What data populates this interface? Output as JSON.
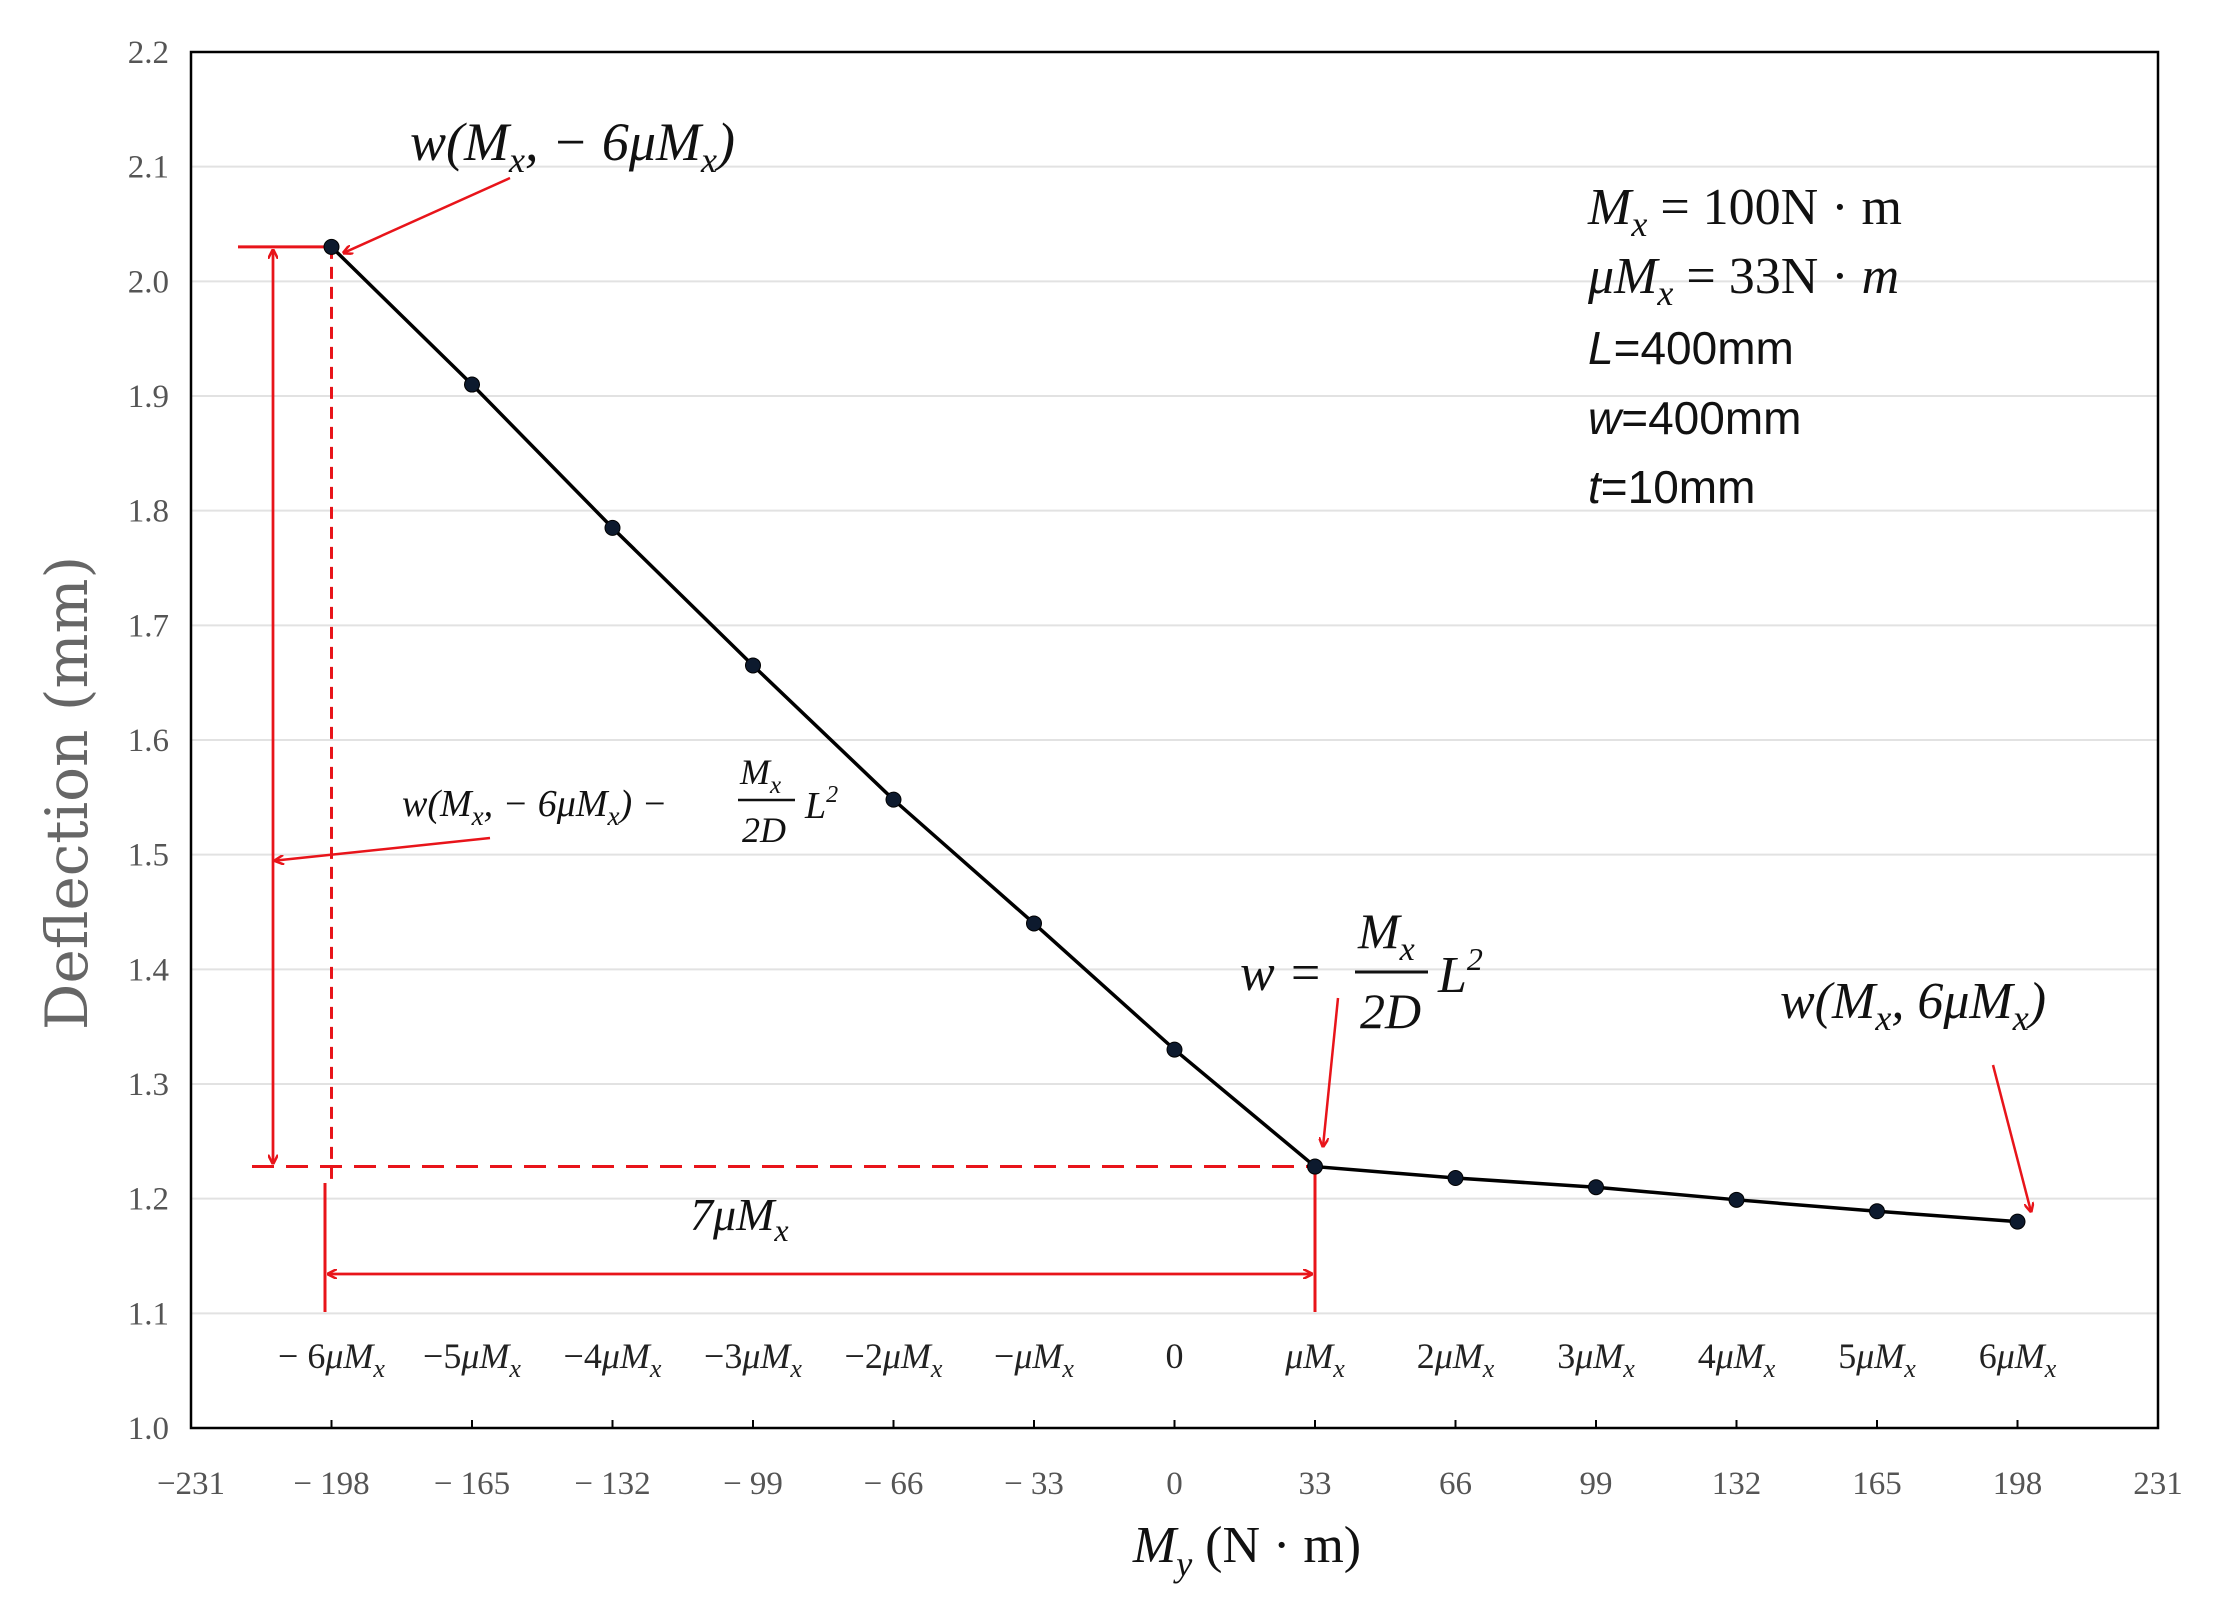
{
  "chart_data": {
    "type": "line",
    "x": [
      -198,
      -165,
      -132,
      -99,
      -66,
      -33,
      0,
      33,
      66,
      99,
      132,
      165,
      198
    ],
    "series": [
      {
        "name": "Deflection",
        "values": [
          2.03,
          1.91,
          1.785,
          1.665,
          1.548,
          1.44,
          1.33,
          1.228,
          1.218,
          1.21,
          1.199,
          1.189,
          1.18
        ]
      }
    ],
    "xlim": [
      -231,
      231
    ],
    "ylim": [
      1.0,
      2.2
    ],
    "x_ticks": [
      -231,
      -198,
      -165,
      -132,
      -99,
      -66,
      -33,
      0,
      33,
      66,
      99,
      132,
      165,
      198,
      231
    ],
    "x_tick_labels": [
      "−231",
      "− 198",
      "− 165",
      "− 132",
      "− 99",
      "− 66",
      "− 33",
      "0",
      "33",
      "66",
      "99",
      "132",
      "165",
      "198",
      "231"
    ],
    "y_ticks": [
      1.0,
      1.1,
      1.2,
      1.3,
      1.4,
      1.5,
      1.6,
      1.7,
      1.8,
      1.9,
      2.0,
      2.1,
      2.2
    ],
    "y_tick_labels": [
      "1.0",
      "1.1",
      "1.2",
      "1.3",
      "1.4",
      "1.5",
      "1.6",
      "1.7",
      "1.8",
      "1.9",
      "2.0",
      "2.1",
      "2.2"
    ],
    "ylabel": "Deflection (mm)",
    "xlabel": {
      "main": "M",
      "sub": "y",
      "unit": " (N · m)"
    },
    "grid": "horizontal",
    "moment_labels": [
      {
        "x": -198,
        "coef": "− 6",
        "mu": "μM",
        "sub": "x"
      },
      {
        "x": -165,
        "coef": "−5",
        "mu": "μM",
        "sub": "x"
      },
      {
        "x": -132,
        "coef": "−4",
        "mu": "μM",
        "sub": "x"
      },
      {
        "x": -99,
        "coef": "−3",
        "mu": "μM",
        "sub": "x"
      },
      {
        "x": -66,
        "coef": "−2",
        "mu": "μM",
        "sub": "x"
      },
      {
        "x": -33,
        "coef": "−",
        "mu": "μM",
        "sub": "x"
      },
      {
        "x": 0,
        "coef": "0",
        "mu": "",
        "sub": ""
      },
      {
        "x": 33,
        "coef": "",
        "mu": "μM",
        "sub": "x"
      },
      {
        "x": 66,
        "coef": "2",
        "mu": "μM",
        "sub": "x"
      },
      {
        "x": 99,
        "coef": "3",
        "mu": "μM",
        "sub": "x"
      },
      {
        "x": 132,
        "coef": "4",
        "mu": "μM",
        "sub": "x"
      },
      {
        "x": 165,
        "coef": "5",
        "mu": "μM",
        "sub": "x"
      },
      {
        "x": 198,
        "coef": "6",
        "mu": "μM",
        "sub": "x"
      }
    ],
    "annotations": {
      "max_point": {
        "w": "w(",
        "M": "M",
        "sub": "x",
        "rest": ", − 6μM",
        "sub2": "x",
        "close": ")"
      },
      "min_point": {
        "w": "w(",
        "M": "M",
        "sub": "x",
        "rest": ", 6μM",
        "sub2": "x",
        "close": ")"
      },
      "kink": {
        "lhs": "w =",
        "num": "M",
        "num_sub": "x",
        "den": "2D",
        "tail": "L",
        "tail_sup": "2"
      },
      "difference": {
        "w": "w(",
        "M": "M",
        "sub": "x",
        "rest": ", − 6μM",
        "sub2": "x",
        "close": ") −",
        "num": "M",
        "num_sub": "x",
        "den": "2D",
        "tail": "L",
        "tail_sup": "2"
      },
      "span": {
        "coef": "7μM",
        "sub": "x"
      }
    },
    "parameters": {
      "mx": {
        "sym": "M",
        "sub": "x",
        "val": " = 100N · m"
      },
      "mumx": {
        "sym": "μM",
        "sub": "x",
        "val": " = 33N · ",
        "unit": "m"
      },
      "L": {
        "sym": "L",
        "val": "=400mm"
      },
      "w": {
        "sym": "w",
        "val": "=400mm"
      },
      "t": {
        "sym": "t",
        "val": "=10mm"
      }
    },
    "colors": {
      "line": "#000000",
      "annotation": "#e8141a",
      "grid": "#e2e2e2",
      "frame": "#000000"
    }
  }
}
